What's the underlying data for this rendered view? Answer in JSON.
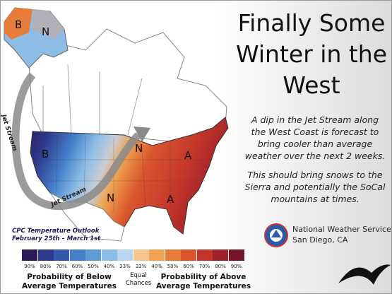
{
  "title": "Finally Some Winter in the West",
  "body": [
    "A dip in the Jet Stream along the West Coast is forecast to bring cooler than average weather over the next 2 weeks.",
    "This should bring snows to the Sierra and potentially the SoCal mountains at times."
  ],
  "office": {
    "name": "National Weather Service",
    "location": "San Diego, CA"
  },
  "map": {
    "outlook_title": "CPC Temperature Outlook",
    "dates": "February 25th – March 1st",
    "jet_stream_labels": [
      "Jet Stream",
      "Jet Stream"
    ],
    "area_labels": [
      "B",
      "N",
      "B",
      "N",
      "N",
      "A",
      "A"
    ]
  },
  "legend": {
    "below": [
      {
        "label": "90%",
        "color": "#2a1b58"
      },
      {
        "label": "80%",
        "color": "#2e3a8c"
      },
      {
        "label": "70%",
        "color": "#3558ad"
      },
      {
        "label": "60%",
        "color": "#457fca"
      },
      {
        "label": "50%",
        "color": "#5e9cd8"
      },
      {
        "label": "40%",
        "color": "#8dbde6"
      },
      {
        "label": "33%",
        "color": "#b8d4ee"
      }
    ],
    "above": [
      {
        "label": "33%",
        "color": "#f5c58c"
      },
      {
        "label": "40%",
        "color": "#f0a452"
      },
      {
        "label": "50%",
        "color": "#e87c3a"
      },
      {
        "label": "60%",
        "color": "#da552d"
      },
      {
        "label": "70%",
        "color": "#c3352b"
      },
      {
        "label": "80%",
        "color": "#a0222b"
      },
      {
        "label": "90%",
        "color": "#761627"
      }
    ],
    "below_caption": "Probability of Below Average Temperatures",
    "equal_caption": "Equal Chances",
    "above_caption": "Probability of Above Average Temperatures"
  }
}
